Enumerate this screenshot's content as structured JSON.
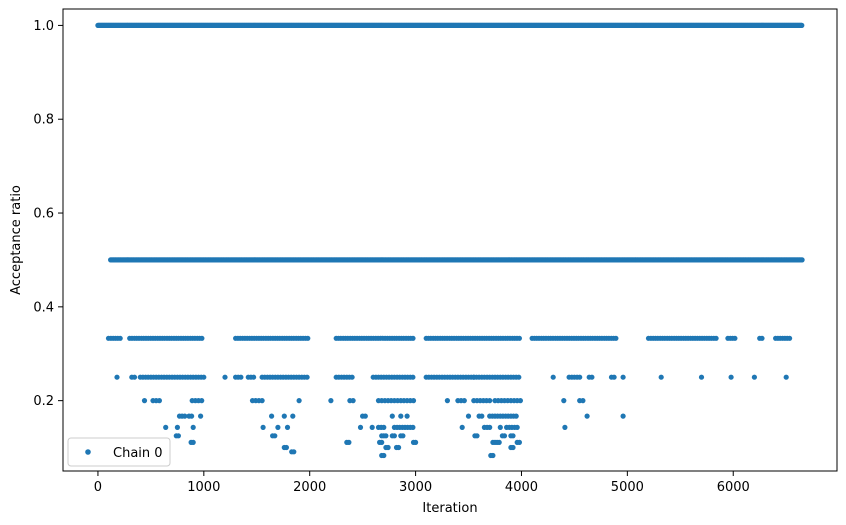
{
  "chart_data": {
    "type": "scatter",
    "xlabel": "Iteration",
    "ylabel": "Acceptance ratio",
    "xlim": [
      -330,
      6980
    ],
    "ylim": [
      0.05,
      1.035
    ],
    "x_ticks": [
      0,
      1000,
      2000,
      3000,
      4000,
      5000,
      6000
    ],
    "y_ticks": [
      0.2,
      0.4,
      0.6,
      0.8,
      1.0
    ],
    "x_tick_labels": [
      "0",
      "1000",
      "2000",
      "3000",
      "4000",
      "5000",
      "6000"
    ],
    "y_tick_labels": [
      "0.2",
      "0.4",
      "0.6",
      "0.8",
      "1.0"
    ],
    "grid": false,
    "legend_position": "lower-left",
    "colors": {
      "series": "#1f77b4"
    },
    "series": [
      {
        "name": "Chain 0",
        "marker": "circle",
        "levels": [
          {
            "y": 1.0,
            "ranges": [
              [
                0,
                6650
              ]
            ],
            "step": 6
          },
          {
            "y": 0.5,
            "ranges": [
              [
                120,
                6650
              ]
            ],
            "step": 10
          },
          {
            "y": 0.333,
            "ranges": [
              [
                100,
                230
              ],
              [
                300,
                990
              ],
              [
                1300,
                2000
              ],
              [
                2250,
                2980
              ],
              [
                3100,
                4000
              ],
              [
                4100,
                4900
              ],
              [
                5200,
                5850
              ],
              [
                5950,
                6020
              ],
              [
                6250,
                6280
              ],
              [
                6400,
                6550
              ]
            ],
            "step": 22
          },
          {
            "y": 0.25,
            "ranges": [
              [
                180,
                200
              ],
              [
                320,
                350
              ],
              [
                400,
                1000
              ],
              [
                1200,
                1220
              ],
              [
                1300,
                1360
              ],
              [
                1420,
                1470
              ],
              [
                1550,
                1980
              ],
              [
                2250,
                2420
              ],
              [
                2600,
                2980
              ],
              [
                3100,
                3550
              ],
              [
                3550,
                3990
              ],
              [
                4300,
                4320
              ],
              [
                4450,
                4550
              ],
              [
                4640,
                4680
              ],
              [
                4850,
                4880
              ],
              [
                4960,
                4980
              ],
              [
                5320,
                5340
              ],
              [
                5700,
                5720
              ],
              [
                5980,
                6000
              ],
              [
                6200,
                6220
              ],
              [
                6500,
                6520
              ]
            ],
            "step": 25
          },
          {
            "y": 0.2,
            "ranges": [
              [
                440,
                460
              ],
              [
                520,
                600
              ],
              [
                890,
                1000
              ],
              [
                1460,
                1560
              ],
              [
                1900,
                1920
              ],
              [
                2200,
                2220
              ],
              [
                2380,
                2420
              ],
              [
                2650,
                2980
              ],
              [
                3300,
                3320
              ],
              [
                3400,
                3480
              ],
              [
                3550,
                3700
              ],
              [
                3750,
                3990
              ],
              [
                4400,
                4420
              ],
              [
                4550,
                4600
              ]
            ],
            "step": 30
          },
          {
            "y": 0.167,
            "ranges": [
              [
                770,
                820
              ],
              [
                860,
                900
              ],
              [
                970,
                990
              ],
              [
                1640,
                1660
              ],
              [
                1760,
                1780
              ],
              [
                1840,
                1860
              ],
              [
                2500,
                2540
              ],
              [
                2780,
                2800
              ],
              [
                2860,
                2880
              ],
              [
                2920,
                2940
              ],
              [
                3500,
                3520
              ],
              [
                3600,
                3640
              ],
              [
                3700,
                3960
              ],
              [
                4620,
                4640
              ],
              [
                4960,
                4980
              ]
            ],
            "step": 25
          },
          {
            "y": 0.143,
            "ranges": [
              [
                640,
                660
              ],
              [
                750,
                760
              ],
              [
                900,
                920
              ],
              [
                1560,
                1580
              ],
              [
                1700,
                1720
              ],
              [
                1790,
                1810
              ],
              [
                2480,
                2500
              ],
              [
                2590,
                2610
              ],
              [
                2650,
                2700
              ],
              [
                2800,
                2990
              ],
              [
                3440,
                3460
              ],
              [
                3650,
                3700
              ],
              [
                3800,
                3820
              ],
              [
                3860,
                3960
              ],
              [
                4410,
                4430
              ]
            ],
            "step": 25
          },
          {
            "y": 0.125,
            "ranges": [
              [
                740,
                760
              ],
              [
                1650,
                1670
              ],
              [
                2680,
                2720
              ],
              [
                2780,
                2800
              ],
              [
                2860,
                2880
              ],
              [
                3560,
                3580
              ],
              [
                3820,
                3840
              ],
              [
                3900,
                3920
              ]
            ],
            "step": 20
          },
          {
            "y": 0.111,
            "ranges": [
              [
                880,
                900
              ],
              [
                2350,
                2370
              ],
              [
                2660,
                2680
              ],
              [
                2980,
                3000
              ],
              [
                3730,
                3750
              ],
              [
                3770,
                3790
              ],
              [
                3960,
                3980
              ]
            ],
            "step": 20
          },
          {
            "y": 0.1,
            "ranges": [
              [
                1760,
                1780
              ],
              [
                2720,
                2740
              ],
              [
                2820,
                2840
              ],
              [
                3900,
                3920
              ]
            ],
            "step": 20
          },
          {
            "y": 0.091,
            "ranges": [
              [
                1830,
                1850
              ]
            ],
            "step": 20
          },
          {
            "y": 0.083,
            "ranges": [
              [
                2680,
                2700
              ],
              [
                3710,
                3730
              ]
            ],
            "step": 20
          }
        ]
      }
    ]
  }
}
